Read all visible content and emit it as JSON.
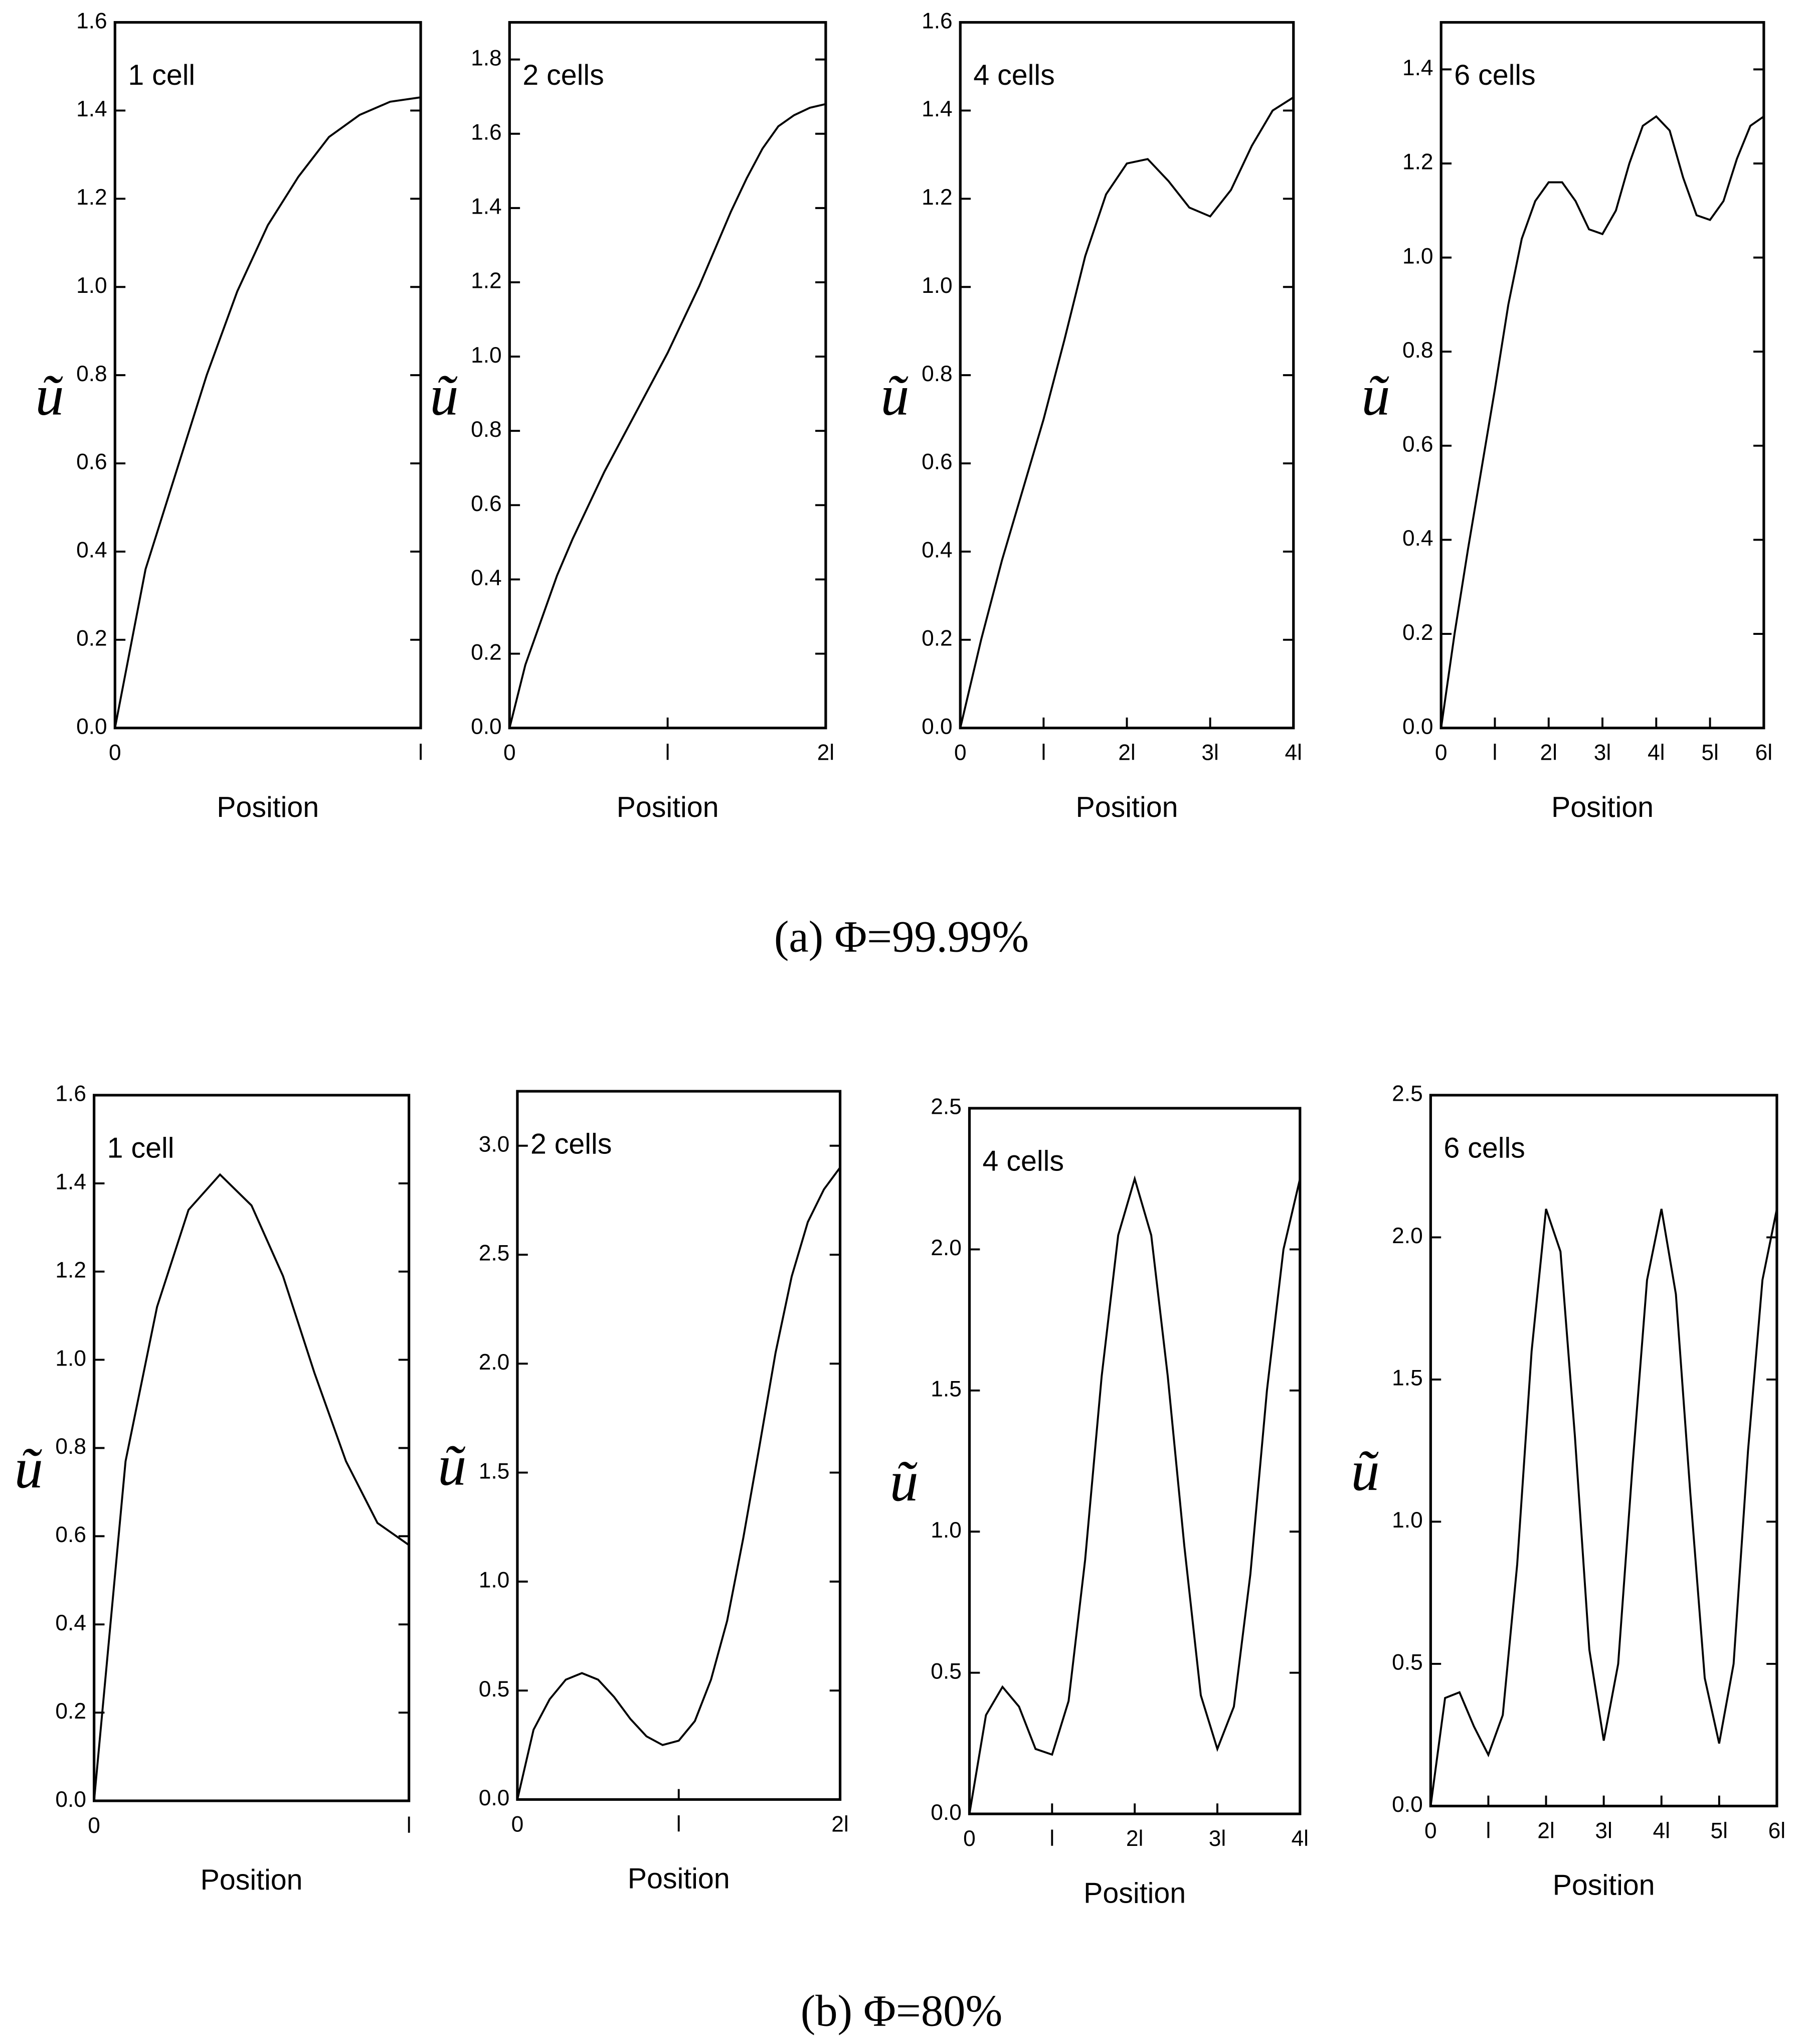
{
  "captions": [
    "(a) Φ=99.99%",
    "(b) Φ=80%"
  ],
  "chart_data": [
    {
      "type": "line",
      "annotation": "1 cell",
      "xlabel": "Position",
      "ylabel": "ũ",
      "color": "#000000",
      "xlim": [
        0,
        1
      ],
      "xticks": [
        0,
        {
          "value": 1,
          "label": "l"
        }
      ],
      "ylim": [
        0,
        1.6
      ],
      "yticks": [
        {
          "value": 0,
          "label": "0.0"
        },
        0.2,
        0.4,
        0.6,
        0.8,
        {
          "value": 1,
          "label": "1.0"
        },
        1.2,
        1.4,
        1.6
      ],
      "x": [
        0,
        0.1,
        0.2,
        0.3,
        0.4,
        0.5,
        0.6,
        0.7,
        0.8,
        0.9,
        1
      ],
      "values": [
        0,
        0.36,
        0.58,
        0.8,
        0.99,
        1.14,
        1.25,
        1.34,
        1.39,
        1.42,
        1.43
      ]
    },
    {
      "type": "line",
      "annotation": "2 cells",
      "xlabel": "Position",
      "ylabel": "ũ",
      "color": "#000000",
      "xlim": [
        0,
        2
      ],
      "xticks": [
        0,
        {
          "value": 1,
          "label": "l"
        },
        {
          "value": 2,
          "label": "2l"
        }
      ],
      "ylim": [
        0,
        1.9
      ],
      "yticks": [
        {
          "value": 0,
          "label": "0.0"
        },
        0.2,
        0.4,
        0.6,
        0.8,
        {
          "value": 1,
          "label": "1.0"
        },
        1.2,
        1.4,
        1.6,
        1.8
      ],
      "x": [
        0,
        0.1,
        0.2,
        0.3,
        0.4,
        0.5,
        0.6,
        0.7,
        0.8,
        0.9,
        1,
        1.1,
        1.2,
        1.3,
        1.4,
        1.5,
        1.6,
        1.7,
        1.8,
        1.9,
        2
      ],
      "values": [
        0,
        0.17,
        0.29,
        0.41,
        0.51,
        0.6,
        0.69,
        0.77,
        0.85,
        0.93,
        1.01,
        1.1,
        1.19,
        1.29,
        1.39,
        1.48,
        1.56,
        1.62,
        1.65,
        1.67,
        1.68
      ]
    },
    {
      "type": "line",
      "annotation": "4 cells",
      "xlabel": "Position",
      "ylabel": "ũ",
      "color": "#000000",
      "xlim": [
        0,
        4
      ],
      "xticks": [
        0,
        {
          "value": 1,
          "label": "l"
        },
        {
          "value": 2,
          "label": "2l"
        },
        {
          "value": 3,
          "label": "3l"
        },
        {
          "value": 4,
          "label": "4l"
        }
      ],
      "ylim": [
        0,
        1.6
      ],
      "yticks": [
        {
          "value": 0,
          "label": "0.0"
        },
        0.2,
        0.4,
        0.6,
        0.8,
        {
          "value": 1,
          "label": "1.0"
        },
        1.2,
        1.4,
        1.6
      ],
      "x": [
        0,
        0.25,
        0.5,
        0.75,
        1,
        1.25,
        1.5,
        1.75,
        2,
        2.25,
        2.5,
        2.75,
        3,
        3.25,
        3.5,
        3.75,
        4
      ],
      "values": [
        0,
        0.2,
        0.38,
        0.54,
        0.7,
        0.88,
        1.07,
        1.21,
        1.28,
        1.29,
        1.24,
        1.18,
        1.16,
        1.22,
        1.32,
        1.4,
        1.43
      ]
    },
    {
      "type": "line",
      "annotation": "6 cells",
      "xlabel": "Position",
      "ylabel": "ũ",
      "color": "#000000",
      "xlim": [
        0,
        6
      ],
      "xticks": [
        0,
        {
          "value": 1,
          "label": "l"
        },
        {
          "value": 2,
          "label": "2l"
        },
        {
          "value": 3,
          "label": "3l"
        },
        {
          "value": 4,
          "label": "4l"
        },
        {
          "value": 5,
          "label": "5l"
        },
        {
          "value": 6,
          "label": "6l"
        }
      ],
      "ylim": [
        0,
        1.5
      ],
      "yticks": [
        {
          "value": 0,
          "label": "0.0"
        },
        0.2,
        0.4,
        0.6,
        0.8,
        {
          "value": 1,
          "label": "1.0"
        },
        1.2,
        1.4
      ],
      "x": [
        0,
        0.25,
        0.5,
        0.75,
        1,
        1.25,
        1.5,
        1.75,
        2,
        2.25,
        2.5,
        2.75,
        3,
        3.25,
        3.5,
        3.75,
        4,
        4.25,
        4.5,
        4.75,
        5,
        5.25,
        5.5,
        5.75,
        6
      ],
      "values": [
        0,
        0.2,
        0.38,
        0.55,
        0.72,
        0.9,
        1.04,
        1.12,
        1.16,
        1.16,
        1.12,
        1.06,
        1.05,
        1.1,
        1.2,
        1.28,
        1.3,
        1.27,
        1.17,
        1.09,
        1.08,
        1.12,
        1.21,
        1.28,
        1.3
      ]
    },
    {
      "type": "line",
      "annotation": "1 cell",
      "xlabel": "Position",
      "ylabel": "ũ",
      "color": "#000000",
      "xlim": [
        0,
        1
      ],
      "xticks": [
        0,
        {
          "value": 1,
          "label": "l"
        }
      ],
      "ylim": [
        0,
        1.6
      ],
      "yticks": [
        {
          "value": 0,
          "label": "0.0"
        },
        0.2,
        0.4,
        0.6,
        0.8,
        {
          "value": 1,
          "label": "1.0"
        },
        1.2,
        1.4,
        1.6
      ],
      "x": [
        0,
        0.1,
        0.2,
        0.3,
        0.4,
        0.5,
        0.6,
        0.7,
        0.8,
        0.9,
        1
      ],
      "values": [
        0,
        0.77,
        1.12,
        1.34,
        1.42,
        1.35,
        1.19,
        0.97,
        0.77,
        0.63,
        0.58
      ]
    },
    {
      "type": "line",
      "annotation": "2 cells",
      "xlabel": "Position",
      "ylabel": "ũ",
      "color": "#000000",
      "xlim": [
        0,
        2
      ],
      "xticks": [
        0,
        {
          "value": 1,
          "label": "l"
        },
        {
          "value": 2,
          "label": "2l"
        }
      ],
      "ylim": [
        0,
        3.25
      ],
      "yticks": [
        {
          "value": 0,
          "label": "0.0"
        },
        0.5,
        {
          "value": 1,
          "label": "1.0"
        },
        1.5,
        {
          "value": 2,
          "label": "2.0"
        },
        2.5,
        {
          "value": 3,
          "label": "3.0"
        }
      ],
      "x": [
        0,
        0.1,
        0.2,
        0.3,
        0.4,
        0.5,
        0.6,
        0.7,
        0.8,
        0.9,
        1,
        1.1,
        1.2,
        1.3,
        1.4,
        1.5,
        1.6,
        1.7,
        1.8,
        1.9,
        2
      ],
      "values": [
        0,
        0.32,
        0.46,
        0.55,
        0.58,
        0.55,
        0.47,
        0.37,
        0.29,
        0.25,
        0.27,
        0.36,
        0.55,
        0.82,
        1.2,
        1.62,
        2.05,
        2.4,
        2.65,
        2.8,
        2.9
      ]
    },
    {
      "type": "line",
      "annotation": "4 cells",
      "xlabel": "Position",
      "ylabel": "ũ",
      "color": "#000000",
      "xlim": [
        0,
        4
      ],
      "xticks": [
        0,
        {
          "value": 1,
          "label": "l"
        },
        {
          "value": 2,
          "label": "2l"
        },
        {
          "value": 3,
          "label": "3l"
        },
        {
          "value": 4,
          "label": "4l"
        }
      ],
      "ylim": [
        0,
        2.5
      ],
      "yticks": [
        {
          "value": 0,
          "label": "0.0"
        },
        0.5,
        {
          "value": 1,
          "label": "1.0"
        },
        1.5,
        {
          "value": 2,
          "label": "2.0"
        },
        2.5
      ],
      "x": [
        0,
        0.2,
        0.4,
        0.6,
        0.8,
        1,
        1.2,
        1.4,
        1.6,
        1.8,
        2,
        2.2,
        2.4,
        2.6,
        2.8,
        3,
        3.2,
        3.4,
        3.6,
        3.8,
        4
      ],
      "values": [
        0,
        0.35,
        0.45,
        0.38,
        0.23,
        0.21,
        0.4,
        0.9,
        1.55,
        2.05,
        2.25,
        2.05,
        1.55,
        0.95,
        0.42,
        0.23,
        0.38,
        0.85,
        1.5,
        2,
        2.25
      ]
    },
    {
      "type": "line",
      "annotation": "6 cells",
      "xlabel": "Position",
      "ylabel": "ũ",
      "color": "#000000",
      "xlim": [
        0,
        6
      ],
      "xticks": [
        0,
        {
          "value": 1,
          "label": "l"
        },
        {
          "value": 2,
          "label": "2l"
        },
        {
          "value": 3,
          "label": "3l"
        },
        {
          "value": 4,
          "label": "4l"
        },
        {
          "value": 5,
          "label": "5l"
        },
        {
          "value": 6,
          "label": "6l"
        }
      ],
      "ylim": [
        0,
        2.5
      ],
      "yticks": [
        {
          "value": 0,
          "label": "0.0"
        },
        0.5,
        {
          "value": 1,
          "label": "1.0"
        },
        1.5,
        {
          "value": 2,
          "label": "2.0"
        },
        2.5
      ],
      "x": [
        0,
        0.25,
        0.5,
        0.75,
        1,
        1.25,
        1.5,
        1.75,
        2,
        2.25,
        2.5,
        2.75,
        3,
        3.25,
        3.5,
        3.75,
        4,
        4.25,
        4.5,
        4.75,
        5,
        5.25,
        5.5,
        5.75,
        6
      ],
      "values": [
        0,
        0.38,
        0.4,
        0.28,
        0.18,
        0.32,
        0.85,
        1.6,
        2.1,
        1.95,
        1.3,
        0.55,
        0.23,
        0.5,
        1.2,
        1.85,
        2.1,
        1.8,
        1.1,
        0.45,
        0.22,
        0.5,
        1.25,
        1.85,
        2.1
      ]
    }
  ]
}
